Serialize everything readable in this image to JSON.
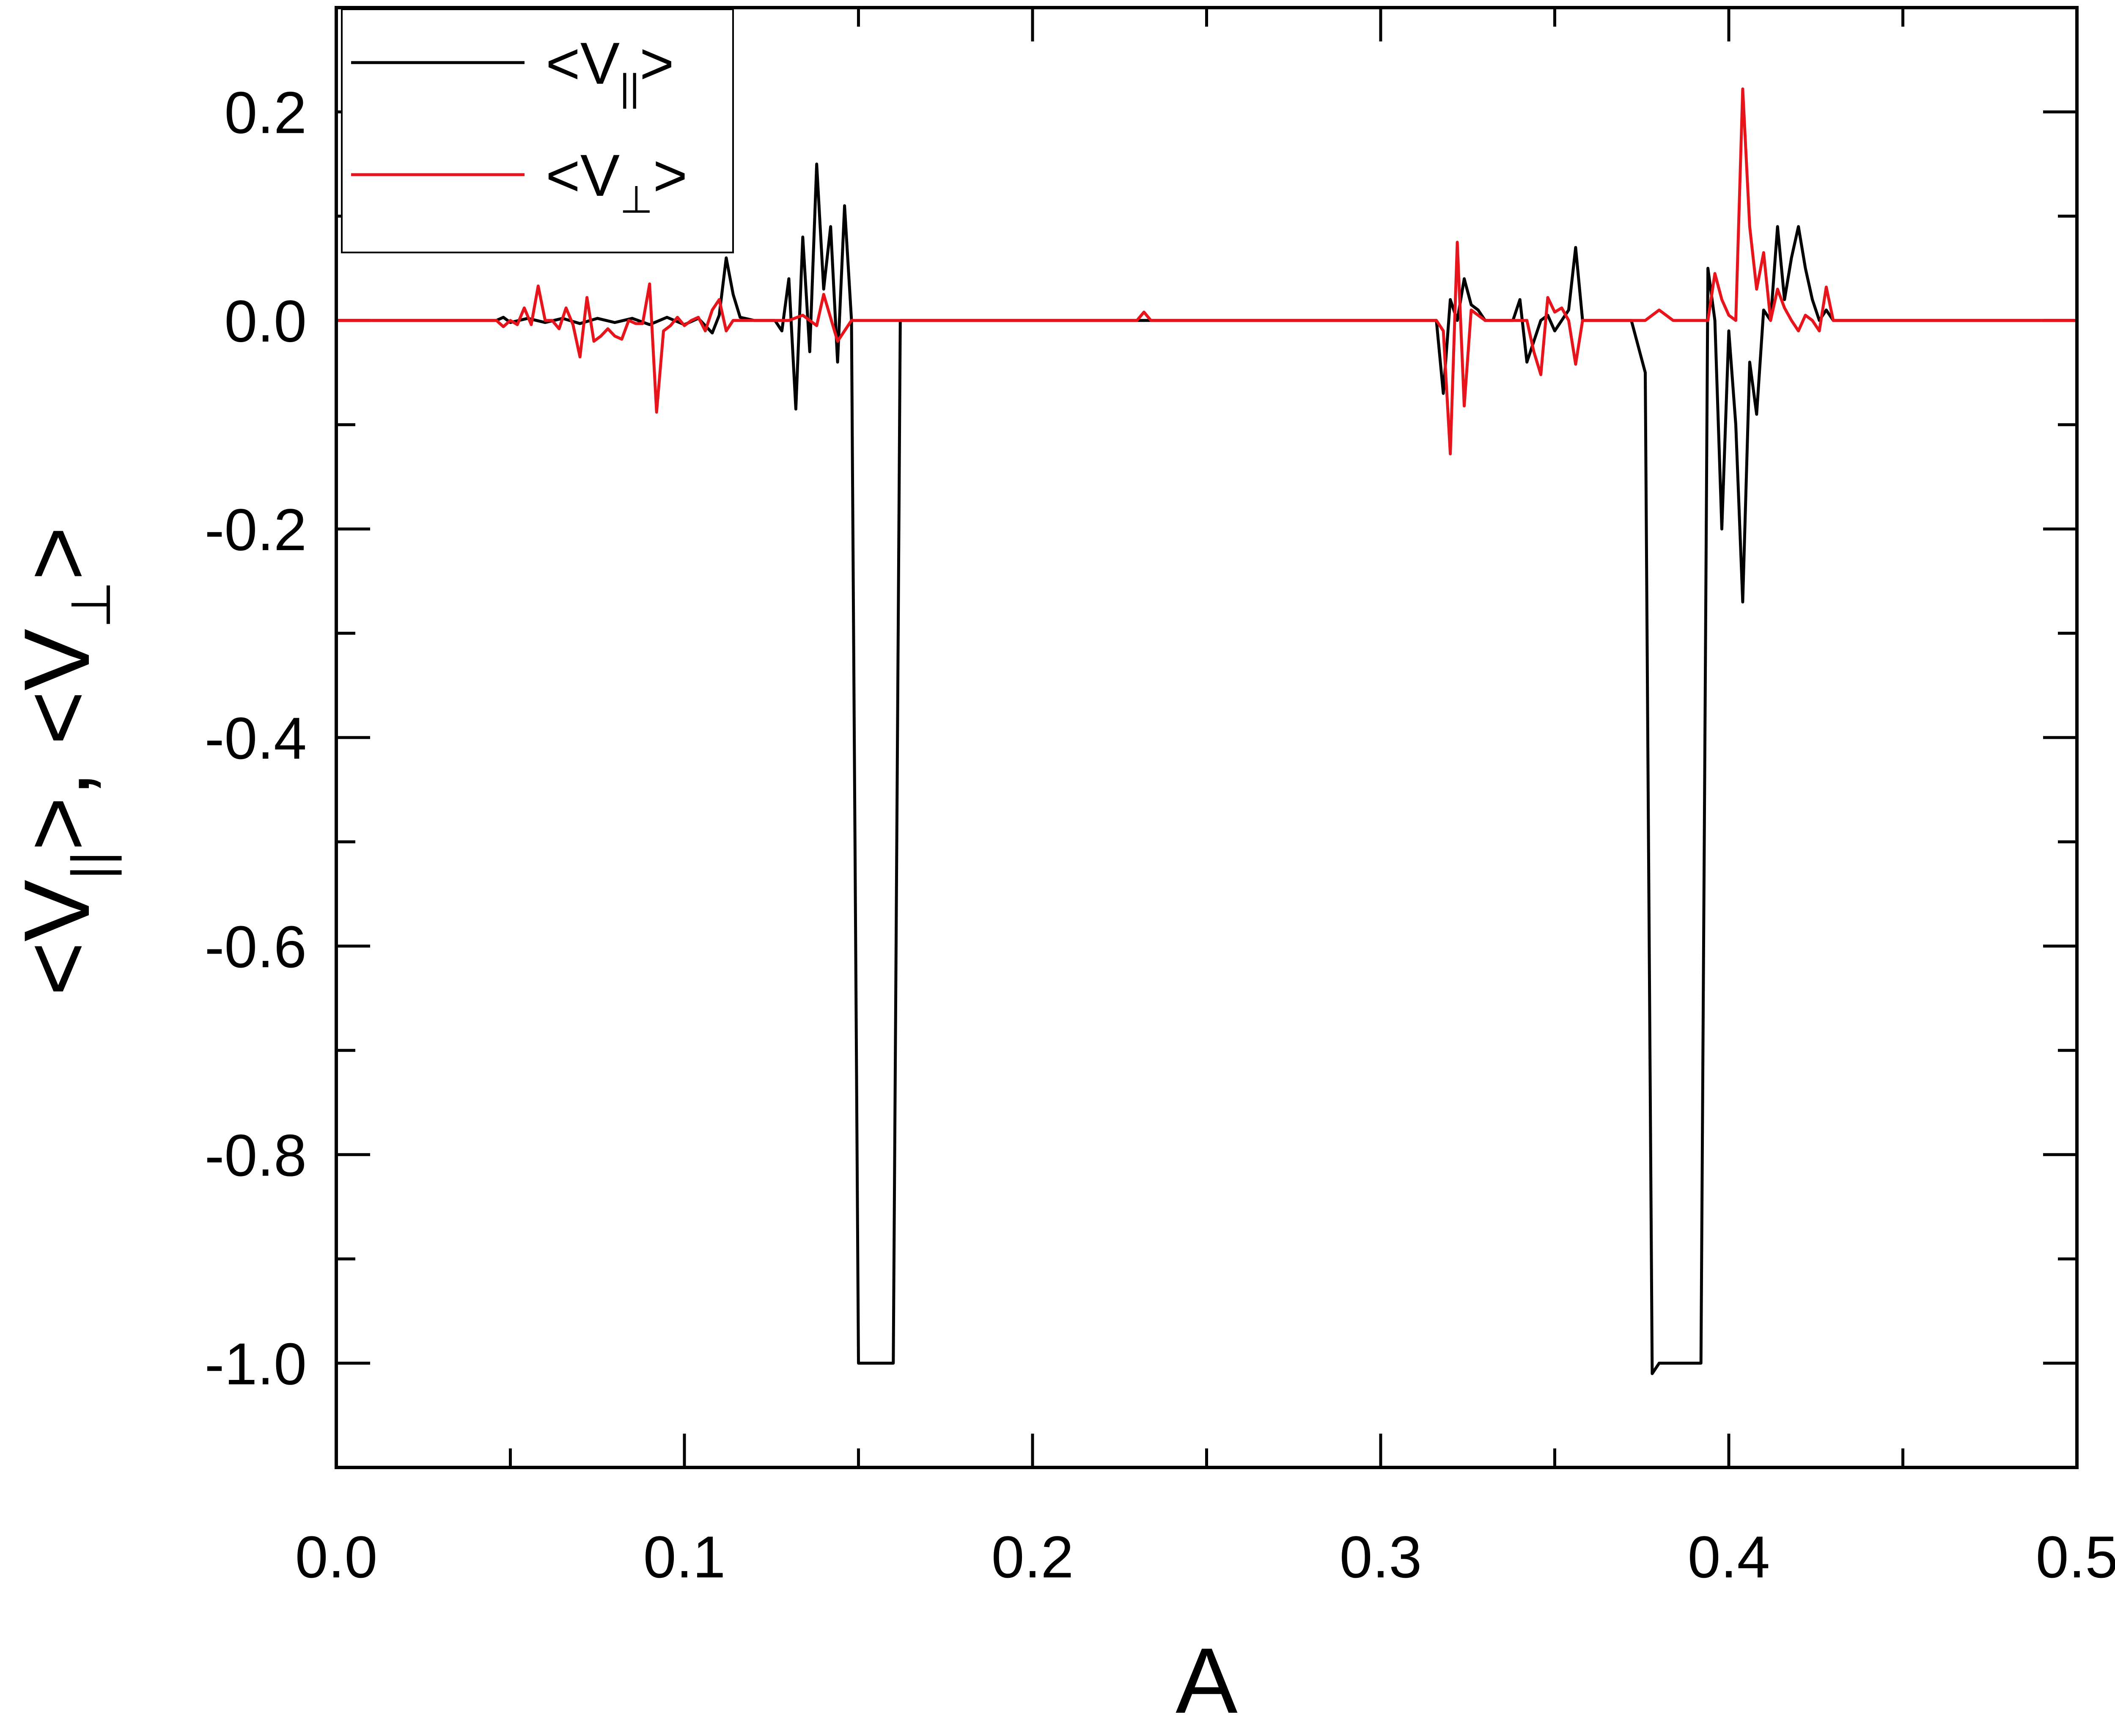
{
  "chart_data": {
    "type": "line",
    "xlabel": "A",
    "ylabel": "<V",
    "ylabel_sub_parallel": "||",
    "ylabel_sub_perp": "⊥",
    "ylabel_mid": ">, <V",
    "ylabel_end": ">",
    "xlim": [
      0.0,
      0.5
    ],
    "ylim": [
      -1.1,
      0.3
    ],
    "x_ticks": [
      "0.0",
      "0.1",
      "0.2",
      "0.3",
      "0.4",
      "0.5"
    ],
    "y_ticks": [
      "0.2",
      "0.0",
      "-0.2",
      "-0.4",
      "-0.6",
      "-0.8",
      "-1.0"
    ],
    "legend": {
      "placement": "top-left",
      "entries": [
        {
          "prefix": "<V",
          "sub": "||",
          "suffix": ">",
          "color": "#000000"
        },
        {
          "prefix": "<V",
          "sub": "⊥",
          "suffix": ">",
          "color": "#e8141c"
        }
      ]
    },
    "series": [
      {
        "color": "#000000",
        "points": [
          [
            0.0,
            0.0
          ],
          [
            0.046,
            0.0
          ],
          [
            0.048,
            0.003
          ],
          [
            0.05,
            -0.002
          ],
          [
            0.055,
            0.002
          ],
          [
            0.06,
            -0.002
          ],
          [
            0.065,
            0.002
          ],
          [
            0.07,
            -0.003
          ],
          [
            0.075,
            0.002
          ],
          [
            0.08,
            -0.002
          ],
          [
            0.085,
            0.002
          ],
          [
            0.09,
            -0.004
          ],
          [
            0.095,
            0.003
          ],
          [
            0.1,
            -0.004
          ],
          [
            0.104,
            0.002
          ],
          [
            0.108,
            -0.012
          ],
          [
            0.11,
            0.005
          ],
          [
            0.112,
            0.06
          ],
          [
            0.114,
            0.025
          ],
          [
            0.116,
            0.003
          ],
          [
            0.12,
            0.0
          ],
          [
            0.126,
            0.0
          ],
          [
            0.128,
            -0.01
          ],
          [
            0.13,
            0.04
          ],
          [
            0.132,
            -0.085
          ],
          [
            0.134,
            0.08
          ],
          [
            0.136,
            -0.03
          ],
          [
            0.138,
            0.15
          ],
          [
            0.14,
            0.03
          ],
          [
            0.142,
            0.09
          ],
          [
            0.144,
            -0.04
          ],
          [
            0.146,
            0.11
          ],
          [
            0.148,
            0.0
          ],
          [
            0.15,
            -1.0
          ],
          [
            0.16,
            -1.0
          ],
          [
            0.162,
            0.0
          ],
          [
            0.316,
            0.0
          ],
          [
            0.318,
            -0.07
          ],
          [
            0.32,
            0.02
          ],
          [
            0.322,
            0.0
          ],
          [
            0.324,
            0.04
          ],
          [
            0.326,
            0.015
          ],
          [
            0.328,
            0.01
          ],
          [
            0.33,
            0.0
          ],
          [
            0.338,
            0.0
          ],
          [
            0.34,
            0.02
          ],
          [
            0.342,
            -0.04
          ],
          [
            0.344,
            -0.02
          ],
          [
            0.346,
            0.0
          ],
          [
            0.348,
            0.005
          ],
          [
            0.35,
            -0.01
          ],
          [
            0.352,
            0.0
          ],
          [
            0.354,
            0.01
          ],
          [
            0.356,
            0.07
          ],
          [
            0.358,
            0.0
          ],
          [
            0.372,
            0.0
          ],
          [
            0.376,
            -0.05
          ],
          [
            0.378,
            -1.01
          ],
          [
            0.38,
            -1.0
          ],
          [
            0.392,
            -1.0
          ],
          [
            0.394,
            0.05
          ],
          [
            0.396,
            0.0
          ],
          [
            0.398,
            -0.2
          ],
          [
            0.4,
            -0.01
          ],
          [
            0.402,
            -0.1
          ],
          [
            0.404,
            -0.27
          ],
          [
            0.406,
            -0.04
          ],
          [
            0.408,
            -0.09
          ],
          [
            0.41,
            0.01
          ],
          [
            0.412,
            0.0
          ],
          [
            0.414,
            0.09
          ],
          [
            0.416,
            0.02
          ],
          [
            0.418,
            0.06
          ],
          [
            0.42,
            0.09
          ],
          [
            0.422,
            0.05
          ],
          [
            0.424,
            0.02
          ],
          [
            0.426,
            0.0
          ],
          [
            0.428,
            0.01
          ],
          [
            0.43,
            0.0
          ],
          [
            0.5,
            0.0
          ]
        ]
      },
      {
        "color": "#e8141c",
        "points": [
          [
            0.0,
            0.0
          ],
          [
            0.046,
            0.0
          ],
          [
            0.048,
            -0.006
          ],
          [
            0.05,
            0.0
          ],
          [
            0.052,
            -0.004
          ],
          [
            0.054,
            0.012
          ],
          [
            0.056,
            -0.004
          ],
          [
            0.058,
            0.033
          ],
          [
            0.06,
            0.0
          ],
          [
            0.062,
            0.0
          ],
          [
            0.064,
            -0.008
          ],
          [
            0.066,
            0.012
          ],
          [
            0.068,
            -0.004
          ],
          [
            0.07,
            -0.035
          ],
          [
            0.072,
            0.022
          ],
          [
            0.074,
            -0.02
          ],
          [
            0.076,
            -0.015
          ],
          [
            0.078,
            -0.008
          ],
          [
            0.08,
            -0.015
          ],
          [
            0.082,
            -0.018
          ],
          [
            0.084,
            0.0
          ],
          [
            0.086,
            -0.003
          ],
          [
            0.088,
            -0.003
          ],
          [
            0.09,
            0.035
          ],
          [
            0.092,
            -0.088
          ],
          [
            0.094,
            -0.01
          ],
          [
            0.096,
            -0.005
          ],
          [
            0.098,
            0.003
          ],
          [
            0.1,
            -0.005
          ],
          [
            0.102,
            0.0
          ],
          [
            0.104,
            0.003
          ],
          [
            0.106,
            -0.01
          ],
          [
            0.108,
            0.01
          ],
          [
            0.11,
            0.02
          ],
          [
            0.112,
            -0.01
          ],
          [
            0.114,
            0.0
          ],
          [
            0.116,
            0.0
          ],
          [
            0.13,
            0.0
          ],
          [
            0.134,
            0.005
          ],
          [
            0.138,
            -0.005
          ],
          [
            0.14,
            0.025
          ],
          [
            0.144,
            -0.02
          ],
          [
            0.148,
            0.0
          ],
          [
            0.23,
            0.0
          ],
          [
            0.232,
            0.008
          ],
          [
            0.234,
            0.0
          ],
          [
            0.316,
            0.0
          ],
          [
            0.318,
            -0.01
          ],
          [
            0.32,
            -0.128
          ],
          [
            0.322,
            0.075
          ],
          [
            0.324,
            -0.082
          ],
          [
            0.326,
            0.01
          ],
          [
            0.328,
            0.005
          ],
          [
            0.33,
            0.0
          ],
          [
            0.342,
            0.0
          ],
          [
            0.344,
            -0.03
          ],
          [
            0.346,
            -0.052
          ],
          [
            0.348,
            0.022
          ],
          [
            0.35,
            0.008
          ],
          [
            0.352,
            0.012
          ],
          [
            0.354,
            0.0
          ],
          [
            0.356,
            -0.042
          ],
          [
            0.358,
            0.0
          ],
          [
            0.376,
            0.0
          ],
          [
            0.38,
            0.01
          ],
          [
            0.384,
            0.0
          ],
          [
            0.394,
            0.0
          ],
          [
            0.396,
            0.045
          ],
          [
            0.398,
            0.02
          ],
          [
            0.4,
            0.005
          ],
          [
            0.402,
            0.0
          ],
          [
            0.404,
            0.222
          ],
          [
            0.406,
            0.09
          ],
          [
            0.408,
            0.03
          ],
          [
            0.41,
            0.065
          ],
          [
            0.412,
            0.0
          ],
          [
            0.414,
            0.03
          ],
          [
            0.416,
            0.012
          ],
          [
            0.418,
            0.0
          ],
          [
            0.42,
            -0.01
          ],
          [
            0.422,
            0.005
          ],
          [
            0.424,
            0.0
          ],
          [
            0.426,
            -0.01
          ],
          [
            0.428,
            0.032
          ],
          [
            0.43,
            0.0
          ],
          [
            0.5,
            0.0
          ]
        ]
      }
    ]
  }
}
